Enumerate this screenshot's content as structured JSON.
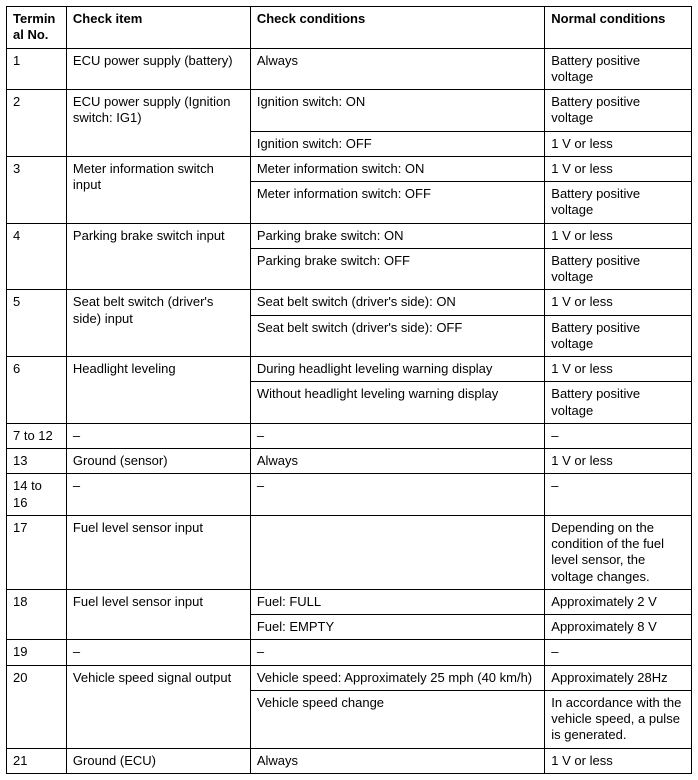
{
  "table": {
    "headers": {
      "terminal": "Terminal No.",
      "checkItem": "Check item",
      "checkConditions": "Check conditions",
      "normalConditions": "Normal conditions"
    },
    "rows": {
      "r1": {
        "no": "1",
        "item": "ECU power supply (battery)",
        "cond": "Always",
        "norm": "Battery positive voltage"
      },
      "r2a": {
        "no": "2",
        "item": "ECU power supply (Ignition switch: IG1)",
        "cond": "Ignition switch: ON",
        "norm": "Battery positive voltage"
      },
      "r2b": {
        "cond": "Ignition switch: OFF",
        "norm": "1 V or less"
      },
      "r3a": {
        "no": "3",
        "item": "Meter information switch input",
        "cond": "Meter information switch: ON",
        "norm": "1 V or less"
      },
      "r3b": {
        "cond": "Meter information switch: OFF",
        "norm": "Battery positive voltage"
      },
      "r4a": {
        "no": "4",
        "item": "Parking brake switch input",
        "cond": "Parking brake switch: ON",
        "norm": "1 V or less"
      },
      "r4b": {
        "cond": "Parking brake switch: OFF",
        "norm": "Battery positive voltage"
      },
      "r5a": {
        "no": "5",
        "item": "Seat belt switch (driver's side) input",
        "cond": "Seat belt switch (driver's side): ON",
        "norm": "1 V or less"
      },
      "r5b": {
        "cond": "Seat belt switch (driver's side): OFF",
        "norm": "Battery positive voltage"
      },
      "r6a": {
        "no": "6",
        "item": "Headlight leveling",
        "cond": "During headlight leveling warning display",
        "norm": "1 V or less"
      },
      "r6b": {
        "cond": "Without headlight leveling warning display",
        "norm": "Battery positive voltage"
      },
      "r7": {
        "no": "7 to 12",
        "item": "–",
        "cond": "–",
        "norm": "–"
      },
      "r13": {
        "no": "13",
        "item": "Ground (sensor)",
        "cond": "Always",
        "norm": "1 V or less"
      },
      "r14": {
        "no": "14 to 16",
        "item": "–",
        "cond": "–",
        "norm": "–"
      },
      "r17": {
        "no": "17",
        "item": "Fuel level sensor input",
        "cond": "",
        "norm": "Depending on the condition of the fuel level sensor, the voltage changes."
      },
      "r18a": {
        "no": "18",
        "item": "Fuel level sensor input",
        "cond": "Fuel: FULL",
        "norm": "Approximately 2 V"
      },
      "r18b": {
        "cond": "Fuel: EMPTY",
        "norm": "Approximately 8 V"
      },
      "r19": {
        "no": "19",
        "item": "–",
        "cond": "–",
        "norm": "–"
      },
      "r20a": {
        "no": "20",
        "item": "Vehicle speed signal output",
        "cond": "Vehicle speed: Approximately 25 mph (40 km/h)",
        "norm": "Approximately 28Hz"
      },
      "r20b": {
        "cond": "Vehicle speed change",
        "norm": "In accordance with the vehicle speed, a pulse is generated."
      },
      "r21": {
        "no": "21",
        "item": "Ground (ECU)",
        "cond": "Always",
        "norm": "1 V or less"
      }
    }
  }
}
